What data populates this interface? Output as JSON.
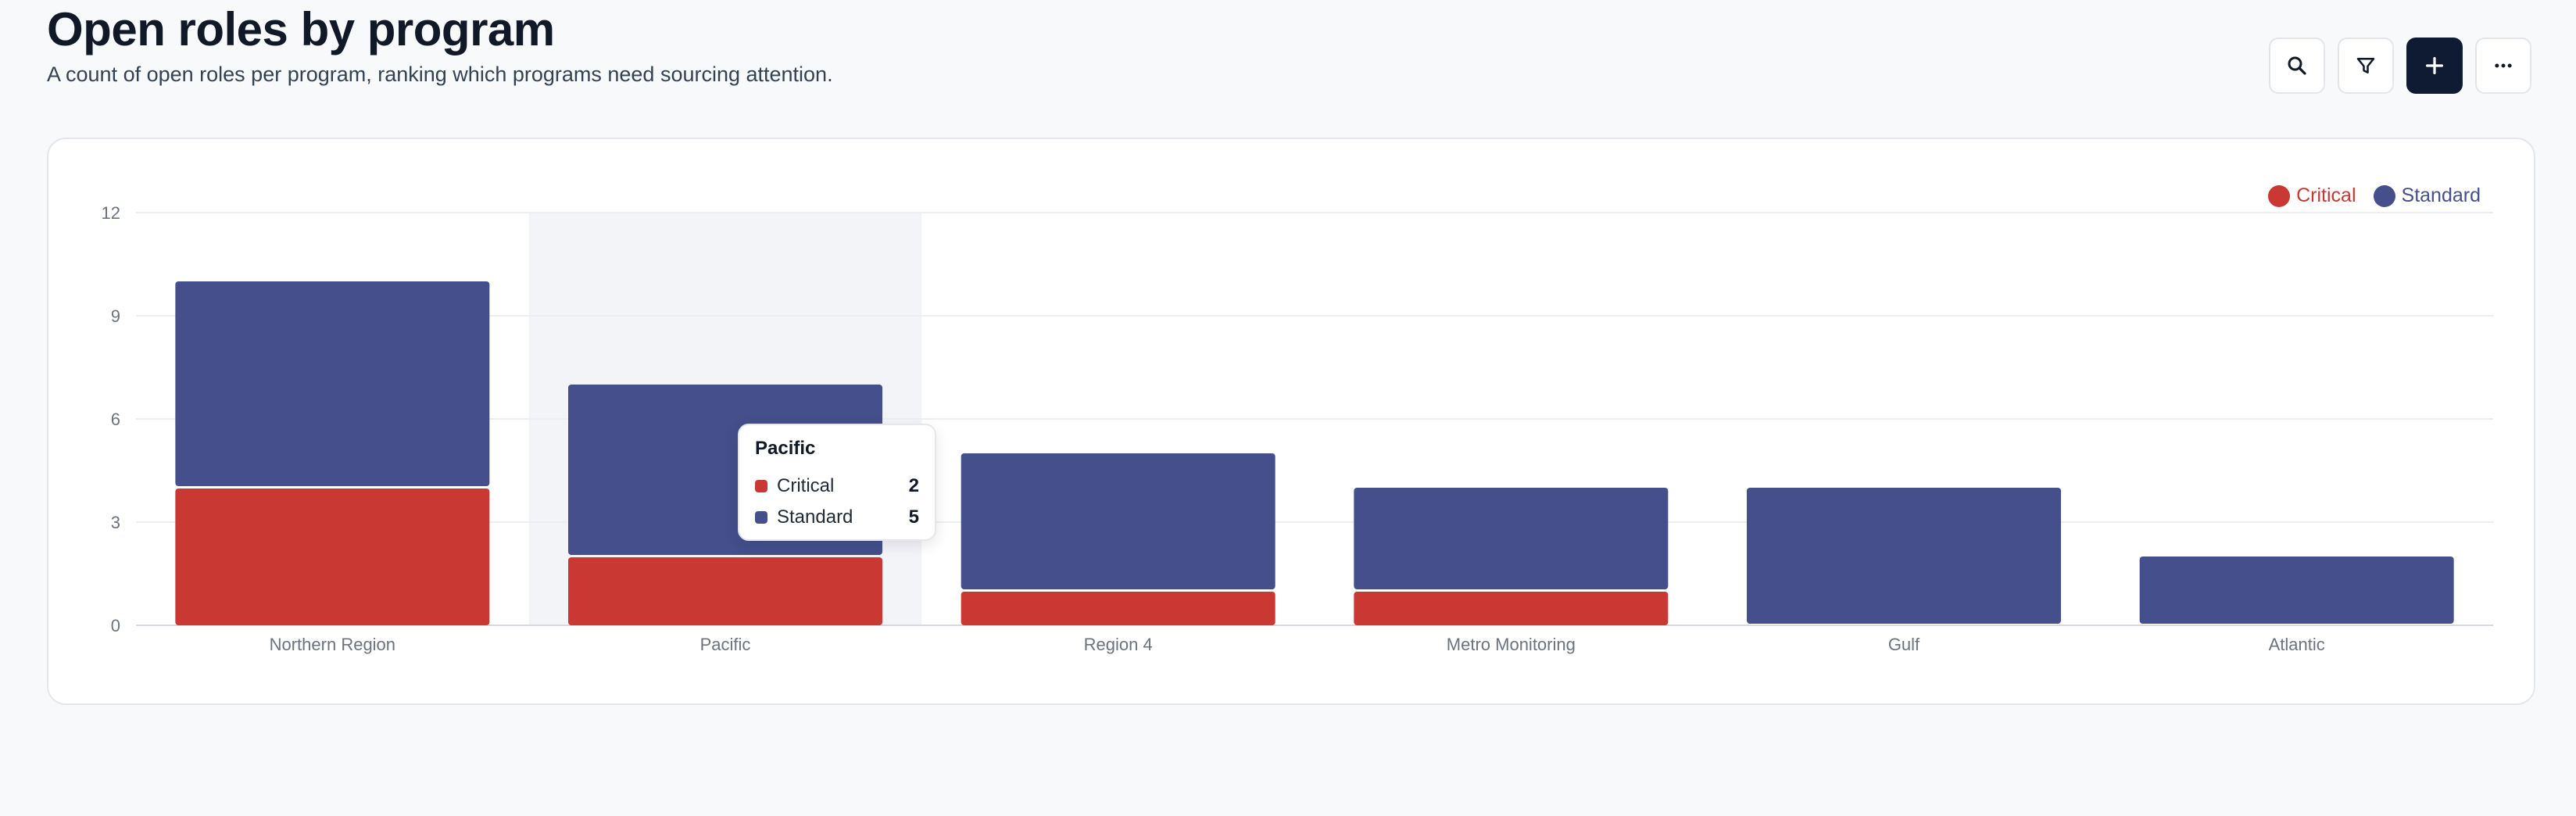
{
  "header": {
    "title": "Open roles by program",
    "subtitle": "A count of open roles per program, ranking which programs need sourcing attention."
  },
  "toolbar": {
    "buttons": [
      {
        "icon": "search-icon"
      },
      {
        "icon": "filter-icon"
      },
      {
        "icon": "plus-icon",
        "primary": true
      },
      {
        "icon": "more-horizontal-icon"
      }
    ]
  },
  "colors": {
    "critical": "#c93832",
    "standard": "#444f8b",
    "hover_band": "#f3f4f8",
    "grid": "#eceef2",
    "axis_text": "#6b7280"
  },
  "legend": {
    "critical": "Critical",
    "standard": "Standard"
  },
  "tooltip": {
    "title": "Pacific",
    "rows": [
      {
        "label": "Critical",
        "value": "2",
        "color": "#c93832"
      },
      {
        "label": "Standard",
        "value": "5",
        "color": "#444f8b"
      }
    ]
  },
  "chart_data": {
    "type": "bar",
    "stacked": true,
    "title": "",
    "xlabel": "",
    "ylabel": "",
    "categories": [
      "Northern Region",
      "Pacific",
      "Region 4",
      "Metro Monitoring",
      "Gulf",
      "Atlantic"
    ],
    "series": [
      {
        "name": "Critical",
        "values": [
          4,
          2,
          1,
          1,
          0,
          0
        ],
        "color": "#c93832"
      },
      {
        "name": "Standard",
        "values": [
          6,
          5,
          4,
          3,
          4,
          2
        ],
        "color": "#444f8b"
      }
    ],
    "yticks": [
      0,
      3,
      6,
      9,
      12
    ],
    "ylim": [
      0,
      12
    ],
    "grid": true,
    "legend_position": "top-right",
    "highlighted_category": "Pacific"
  }
}
